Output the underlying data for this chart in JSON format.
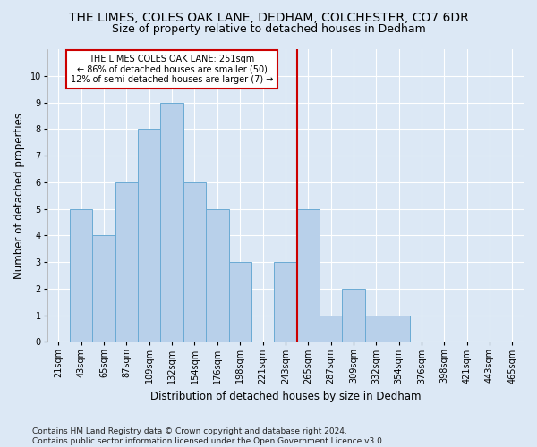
{
  "title": "THE LIMES, COLES OAK LANE, DEDHAM, COLCHESTER, CO7 6DR",
  "subtitle": "Size of property relative to detached houses in Dedham",
  "xlabel": "Distribution of detached houses by size in Dedham",
  "ylabel": "Number of detached properties",
  "footer": "Contains HM Land Registry data © Crown copyright and database right 2024.\nContains public sector information licensed under the Open Government Licence v3.0.",
  "bins": [
    "21sqm",
    "43sqm",
    "65sqm",
    "87sqm",
    "109sqm",
    "132sqm",
    "154sqm",
    "176sqm",
    "198sqm",
    "221sqm",
    "243sqm",
    "265sqm",
    "287sqm",
    "309sqm",
    "332sqm",
    "354sqm",
    "376sqm",
    "398sqm",
    "421sqm",
    "443sqm",
    "465sqm"
  ],
  "values": [
    0,
    5,
    4,
    6,
    8,
    9,
    6,
    5,
    3,
    0,
    3,
    5,
    1,
    2,
    1,
    1,
    0,
    0,
    0,
    0,
    0
  ],
  "bar_color": "#b8d0ea",
  "bar_edge_color": "#6aaad4",
  "vline_color": "#cc0000",
  "annotation_text": "THE LIMES COLES OAK LANE: 251sqm\n← 86% of detached houses are smaller (50)\n12% of semi-detached houses are larger (7) →",
  "annotation_box_color": "#ffffff",
  "annotation_box_edge_color": "#cc0000",
  "ylim": [
    0,
    11
  ],
  "yticks": [
    0,
    1,
    2,
    3,
    4,
    5,
    6,
    7,
    8,
    9,
    10
  ],
  "background_color": "#dce8f5",
  "grid_color": "#ffffff",
  "title_fontsize": 10,
  "subtitle_fontsize": 9,
  "axis_label_fontsize": 8.5,
  "tick_fontsize": 7,
  "footer_fontsize": 6.5,
  "vline_bin_index": 10.5
}
